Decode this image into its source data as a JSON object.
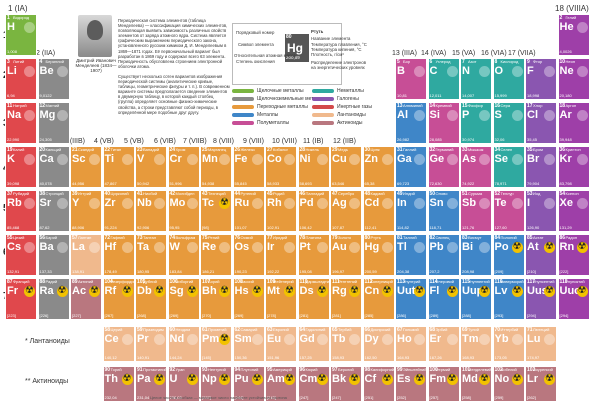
{
  "groups": {
    "g1": "1 (IA)",
    "g2": "2 (IIA)",
    "g3": "3 (IIIB)",
    "g4": "4 (VB)",
    "g5": "5 (VB)",
    "g6": "6 (VIB)",
    "g7": "7 (VIIB)",
    "g8": "8 (VIII)",
    "g9": "9 (VIII)",
    "g10": "10 (VIII)",
    "g11": "11 (IB)",
    "g12": "12 (IIB)",
    "g13": "13 (IIIA)",
    "g14": "14 (IVA)",
    "g15": "15 (VA)",
    "g16": "16 (VIA)",
    "g17": "17 (VIIA)",
    "g18": "18 (VIIIA)"
  },
  "periods": [
    "1",
    "2",
    "3",
    "4",
    "5",
    "6",
    "7"
  ],
  "series": {
    "lanthanides": "* Лантаноиды",
    "actinides": "** Актиноиды"
  },
  "intro": "Периодическая система элементов (таблица Менделеева) — классификация химических элементов, позволяющая выявить зависимость различных свойств элементов от заряда атомного ядра. Система является графическим выражением периодического закона, установленного русским химиком Д. И. Менделеевым в 1869—1871 годах. Её первоначальный вариант был разработан в 1869 году и содержал всего 63 элемента. Периодичность обусловлена строением электронной оболочки атома.",
  "intro2": "Существует несколько сотен вариантов изображения периодической системы (аналитические кривые, таблицы, геометрические фигуры и т. п.). В современном варианте системы предполагается сведение элементов в двумерную таблицу, в которой каждый столбец (группа) определяет основные физико-химические свойства, а строки представляют собой периоды, в определённой мере подобные друг другу.",
  "author": "Дмитрий Иванович Менделеев (1834—1907)",
  "legend": {
    "num": "80",
    "name": "Ртуть",
    "sym": "Hg",
    "mass": "200,59",
    "labels": [
      "Порядковый номер",
      "Символ элемента",
      "Относительная атомная масса",
      "Степень окисления",
      "Название элемента",
      "Температура плавления, °C",
      "Температура кипения, °C",
      "Плотность, г/см³",
      "Распределение электронов на энергетических уровнях"
    ]
  },
  "categories": [
    {
      "name": "Щелочные металлы",
      "color": "#7ab540"
    },
    {
      "name": "Щелочноземельные металлы",
      "color": "#8a8a8a"
    },
    {
      "name": "Переходные металлы",
      "color": "#e79a3c"
    },
    {
      "name": "Металлы",
      "color": "#3f86c8"
    },
    {
      "name": "Полуметаллы",
      "color": "#c74e96"
    },
    {
      "name": "Неметаллы",
      "color": "#2fa9a0"
    },
    {
      "name": "Галогены",
      "color": "#8a56b0"
    },
    {
      "name": "Инертные газы",
      "color": "#d34a4a"
    },
    {
      "name": "Лантаноиды",
      "color": "#f0b98d"
    },
    {
      "name": "Актиноиды",
      "color": "#b9777f"
    }
  ],
  "footnote": "Целое число в скобках — массовое число наиболее устойчивого изотопа",
  "colors": {
    "h": "#7ab540",
    "alk": "#e0484c",
    "ae": "#8a8a8a",
    "tr": "#e79a3c",
    "met": "#3f86c8",
    "semi": "#c74e96",
    "non": "#2fa9a0",
    "hal": "#8a56b0",
    "gas": "#9e3fa8",
    "la": "#f0b98d",
    "ac": "#b9777f"
  },
  "elements": [
    [
      "1",
      "Водород",
      "H",
      "1,008",
      "h",
      1,
      1
    ],
    [
      "2",
      "Гелий",
      "He",
      "4,0026",
      "gas",
      18,
      1
    ],
    [
      "3",
      "Литий",
      "Li",
      "6,94",
      "alk",
      1,
      2
    ],
    [
      "4",
      "Бериллий",
      "Be",
      "9,0122",
      "ae",
      2,
      2
    ],
    [
      "5",
      "Бор",
      "B",
      "10,81",
      "semi",
      13,
      2
    ],
    [
      "6",
      "Углерод",
      "C",
      "12,011",
      "non",
      14,
      2
    ],
    [
      "7",
      "Азот",
      "N",
      "14,007",
      "non",
      15,
      2
    ],
    [
      "8",
      "Кислород",
      "O",
      "15,999",
      "non",
      16,
      2
    ],
    [
      "9",
      "Фтор",
      "F",
      "18,998",
      "hal",
      17,
      2
    ],
    [
      "10",
      "Неон",
      "Ne",
      "20,180",
      "gas",
      18,
      2
    ],
    [
      "11",
      "Натрий",
      "Na",
      "22,990",
      "alk",
      1,
      3
    ],
    [
      "12",
      "Магний",
      "Mg",
      "24,305",
      "ae",
      2,
      3
    ],
    [
      "13",
      "Алюминий",
      "Al",
      "26,982",
      "met",
      13,
      3
    ],
    [
      "14",
      "Кремний",
      "Si",
      "28,085",
      "semi",
      14,
      3
    ],
    [
      "15",
      "Фосфор",
      "P",
      "30,974",
      "non",
      15,
      3
    ],
    [
      "16",
      "Сера",
      "S",
      "32,06",
      "non",
      16,
      3
    ],
    [
      "17",
      "Хлор",
      "Cl",
      "35,45",
      "hal",
      17,
      3
    ],
    [
      "18",
      "Аргон",
      "Ar",
      "39,948",
      "gas",
      18,
      3
    ],
    [
      "19",
      "Калий",
      "K",
      "39,098",
      "alk",
      1,
      4
    ],
    [
      "20",
      "Кальций",
      "Ca",
      "40,078",
      "ae",
      2,
      4
    ],
    [
      "21",
      "Скандий",
      "Sc",
      "44,956",
      "tr",
      3,
      4
    ],
    [
      "22",
      "Титан",
      "Ti",
      "47,867",
      "tr",
      4,
      4
    ],
    [
      "23",
      "Ванадий",
      "V",
      "50,942",
      "tr",
      5,
      4
    ],
    [
      "24",
      "Хром",
      "Cr",
      "51,996",
      "tr",
      6,
      4
    ],
    [
      "25",
      "Марганец",
      "Mn",
      "54,938",
      "tr",
      7,
      4
    ],
    [
      "26",
      "Железо",
      "Fe",
      "55,845",
      "tr",
      8,
      4
    ],
    [
      "27",
      "Кобальт",
      "Co",
      "58,933",
      "tr",
      9,
      4
    ],
    [
      "28",
      "Никель",
      "Ni",
      "58,693",
      "tr",
      10,
      4
    ],
    [
      "29",
      "Медь",
      "Cu",
      "63,546",
      "tr",
      11,
      4
    ],
    [
      "30",
      "Цинк",
      "Zn",
      "65,38",
      "tr",
      12,
      4
    ],
    [
      "31",
      "Галлий",
      "Ga",
      "69,723",
      "met",
      13,
      4
    ],
    [
      "32",
      "Германий",
      "Ge",
      "72,630",
      "semi",
      14,
      4
    ],
    [
      "33",
      "Мышьяк",
      "As",
      "74,922",
      "semi",
      15,
      4
    ],
    [
      "34",
      "Селен",
      "Se",
      "78,971",
      "non",
      16,
      4
    ],
    [
      "35",
      "Бром",
      "Br",
      "79,904",
      "hal",
      17,
      4
    ],
    [
      "36",
      "Криптон",
      "Kr",
      "83,798",
      "gas",
      18,
      4
    ],
    [
      "37",
      "Рубидий",
      "Rb",
      "85,468",
      "alk",
      1,
      5
    ],
    [
      "38",
      "Стронций",
      "Sr",
      "87,62",
      "ae",
      2,
      5
    ],
    [
      "39",
      "Иттрий",
      "Y",
      "88,906",
      "tr",
      3,
      5
    ],
    [
      "40",
      "Цирконий",
      "Zr",
      "91,224",
      "tr",
      4,
      5
    ],
    [
      "41",
      "Ниобий",
      "Nb",
      "92,906",
      "tr",
      5,
      5
    ],
    [
      "42",
      "Молибден",
      "Mo",
      "95,95",
      "tr",
      6,
      5
    ],
    [
      "43",
      "Технеций",
      "Tc",
      "[98]",
      "tr",
      7,
      5
    ],
    [
      "44",
      "Рутений",
      "Ru",
      "101,07",
      "tr",
      8,
      5
    ],
    [
      "45",
      "Родий",
      "Rh",
      "102,91",
      "tr",
      9,
      5
    ],
    [
      "46",
      "Палладий",
      "Pd",
      "106,42",
      "tr",
      10,
      5
    ],
    [
      "47",
      "Серебро",
      "Ag",
      "107,87",
      "tr",
      11,
      5
    ],
    [
      "48",
      "Кадмий",
      "Cd",
      "112,41",
      "tr",
      12,
      5
    ],
    [
      "49",
      "Индий",
      "In",
      "114,82",
      "met",
      13,
      5
    ],
    [
      "50",
      "Олово",
      "Sn",
      "118,71",
      "met",
      14,
      5
    ],
    [
      "51",
      "Сурьма",
      "Sb",
      "121,76",
      "semi",
      15,
      5
    ],
    [
      "52",
      "Теллур",
      "Te",
      "127,60",
      "semi",
      16,
      5
    ],
    [
      "53",
      "Иод",
      "I",
      "126,90",
      "hal",
      17,
      5
    ],
    [
      "54",
      "Ксенон",
      "Xe",
      "131,29",
      "gas",
      18,
      5
    ],
    [
      "55",
      "Цезий",
      "Cs",
      "132,91",
      "alk",
      1,
      6
    ],
    [
      "56",
      "Барий",
      "Ba",
      "137,33",
      "ae",
      2,
      6
    ],
    [
      "57",
      "Лантан",
      "La",
      "138,91",
      "la",
      3,
      6
    ],
    [
      "72",
      "Гафний",
      "Hf",
      "178,49",
      "tr",
      4,
      6
    ],
    [
      "73",
      "Тантал",
      "Ta",
      "180,95",
      "tr",
      5,
      6
    ],
    [
      "74",
      "Вольфрам",
      "W",
      "183,84",
      "tr",
      6,
      6
    ],
    [
      "75",
      "Рений",
      "Re",
      "186,21",
      "tr",
      7,
      6
    ],
    [
      "76",
      "Осмий",
      "Os",
      "190,23",
      "tr",
      8,
      6
    ],
    [
      "77",
      "Иридий",
      "Ir",
      "192,22",
      "tr",
      9,
      6
    ],
    [
      "78",
      "Платина",
      "Pt",
      "195,08",
      "tr",
      10,
      6
    ],
    [
      "79",
      "Золото",
      "Au",
      "196,97",
      "tr",
      11,
      6
    ],
    [
      "80",
      "Ртуть",
      "Hg",
      "200,59",
      "tr",
      12,
      6
    ],
    [
      "81",
      "Таллий",
      "Tl",
      "204,38",
      "met",
      13,
      6
    ],
    [
      "82",
      "Свинец",
      "Pb",
      "207,2",
      "met",
      14,
      6
    ],
    [
      "83",
      "Висмут",
      "Bi",
      "208,98",
      "met",
      15,
      6
    ],
    [
      "84",
      "Полоний",
      "Po",
      "[209]",
      "met",
      16,
      6
    ],
    [
      "85",
      "Астат",
      "At",
      "[210]",
      "hal",
      17,
      6
    ],
    [
      "86",
      "Радон",
      "Rn",
      "[222]",
      "gas",
      18,
      6
    ],
    [
      "87",
      "Франций",
      "Fr",
      "[223]",
      "alk",
      1,
      7
    ],
    [
      "88",
      "Радий",
      "Ra",
      "[226]",
      "ae",
      2,
      7
    ],
    [
      "89",
      "Актиний",
      "Ac",
      "[227]",
      "ac",
      3,
      7
    ],
    [
      "104",
      "Резерфордий",
      "Rf",
      "[267]",
      "tr",
      4,
      7
    ],
    [
      "105",
      "Дубний",
      "Db",
      "[268]",
      "tr",
      5,
      7
    ],
    [
      "106",
      "Сиборгий",
      "Sg",
      "[269]",
      "tr",
      6,
      7
    ],
    [
      "107",
      "Борий",
      "Bh",
      "[270]",
      "tr",
      7,
      7
    ],
    [
      "108",
      "Хассий",
      "Hs",
      "[269]",
      "tr",
      8,
      7
    ],
    [
      "109",
      "Мейтнерий",
      "Mt",
      "[278]",
      "tr",
      9,
      7
    ],
    [
      "110",
      "Дармштадтий",
      "Ds",
      "[281]",
      "tr",
      10,
      7
    ],
    [
      "111",
      "Рентгений",
      "Rg",
      "[281]",
      "tr",
      11,
      7
    ],
    [
      "112",
      "Коперниций",
      "Cn",
      "[285]",
      "tr",
      12,
      7
    ],
    [
      "113",
      "Унунтрий",
      "Uut",
      "[286]",
      "met",
      13,
      7
    ],
    [
      "114",
      "Флеровий",
      "Fl",
      "[289]",
      "met",
      14,
      7
    ],
    [
      "115",
      "Унунпентий",
      "Uup",
      "[288]",
      "met",
      15,
      7
    ],
    [
      "116",
      "Ливерморий",
      "Lv",
      "[293]",
      "met",
      16,
      7
    ],
    [
      "117",
      "Унунсептий",
      "Uus",
      "[294]",
      "hal",
      17,
      7
    ],
    [
      "118",
      "Унуноктий",
      "Uuo",
      "[294]",
      "gas",
      18,
      7
    ],
    [
      "58",
      "Церий",
      "Ce",
      "140,12",
      "la",
      4,
      8
    ],
    [
      "59",
      "Празеодим",
      "Pr",
      "140,91",
      "la",
      5,
      8
    ],
    [
      "60",
      "Неодим",
      "Nd",
      "144,24",
      "la",
      6,
      8
    ],
    [
      "61",
      "Прометий",
      "Pm",
      "[145]",
      "la",
      7,
      8
    ],
    [
      "62",
      "Самарий",
      "Sm",
      "150,36",
      "la",
      8,
      8
    ],
    [
      "63",
      "Европий",
      "Eu",
      "151,96",
      "la",
      9,
      8
    ],
    [
      "64",
      "Гадолиний",
      "Gd",
      "157,25",
      "la",
      10,
      8
    ],
    [
      "65",
      "Тербий",
      "Tb",
      "158,93",
      "la",
      11,
      8
    ],
    [
      "66",
      "Диспрозий",
      "Dy",
      "162,50",
      "la",
      12,
      8
    ],
    [
      "67",
      "Гольмий",
      "Ho",
      "164,93",
      "la",
      13,
      8
    ],
    [
      "68",
      "Эрбий",
      "Er",
      "167,26",
      "la",
      14,
      8
    ],
    [
      "69",
      "Тулий",
      "Tm",
      "168,93",
      "la",
      15,
      8
    ],
    [
      "70",
      "Иттербий",
      "Yb",
      "173,05",
      "la",
      16,
      8
    ],
    [
      "71",
      "Лютеций",
      "Lu",
      "174,97",
      "la",
      17,
      8
    ],
    [
      "90",
      "Торий",
      "Th",
      "232,04",
      "ac",
      4,
      9
    ],
    [
      "91",
      "Протактиний",
      "Pa",
      "231,04",
      "ac",
      5,
      9
    ],
    [
      "92",
      "Уран",
      "U",
      "238,03",
      "ac",
      6,
      9
    ],
    [
      "93",
      "Нептуний",
      "Np",
      "[237]",
      "ac",
      7,
      9
    ],
    [
      "94",
      "Плутоний",
      "Pu",
      "[244]",
      "ac",
      8,
      9
    ],
    [
      "95",
      "Америций",
      "Am",
      "[243]",
      "ac",
      9,
      9
    ],
    [
      "96",
      "Кюрий",
      "Cm",
      "[247]",
      "ac",
      10,
      9
    ],
    [
      "97",
      "Берклий",
      "Bk",
      "[247]",
      "ac",
      11,
      9
    ],
    [
      "98",
      "Калифорний",
      "Cf",
      "[251]",
      "ac",
      12,
      9
    ],
    [
      "99",
      "Эйнштейний",
      "Es",
      "[252]",
      "ac",
      13,
      9
    ],
    [
      "100",
      "Фермий",
      "Fm",
      "[257]",
      "ac",
      14,
      9
    ],
    [
      "101",
      "Менделевий",
      "Md",
      "[258]",
      "ac",
      15,
      9
    ],
    [
      "102",
      "Нобелий",
      "No",
      "[259]",
      "ac",
      16,
      9
    ],
    [
      "103",
      "Лоуренсий",
      "Lr",
      "[262]",
      "ac",
      17,
      9
    ]
  ],
  "radioactive": [
    "43",
    "61",
    "84",
    "85",
    "86",
    "87",
    "88",
    "89",
    "90",
    "91",
    "92",
    "93",
    "94",
    "95",
    "96",
    "97",
    "98",
    "99",
    "100",
    "101",
    "102",
    "103",
    "104",
    "105",
    "106",
    "107",
    "108",
    "109",
    "110",
    "111",
    "112",
    "113",
    "114",
    "115",
    "116",
    "117",
    "118"
  ]
}
